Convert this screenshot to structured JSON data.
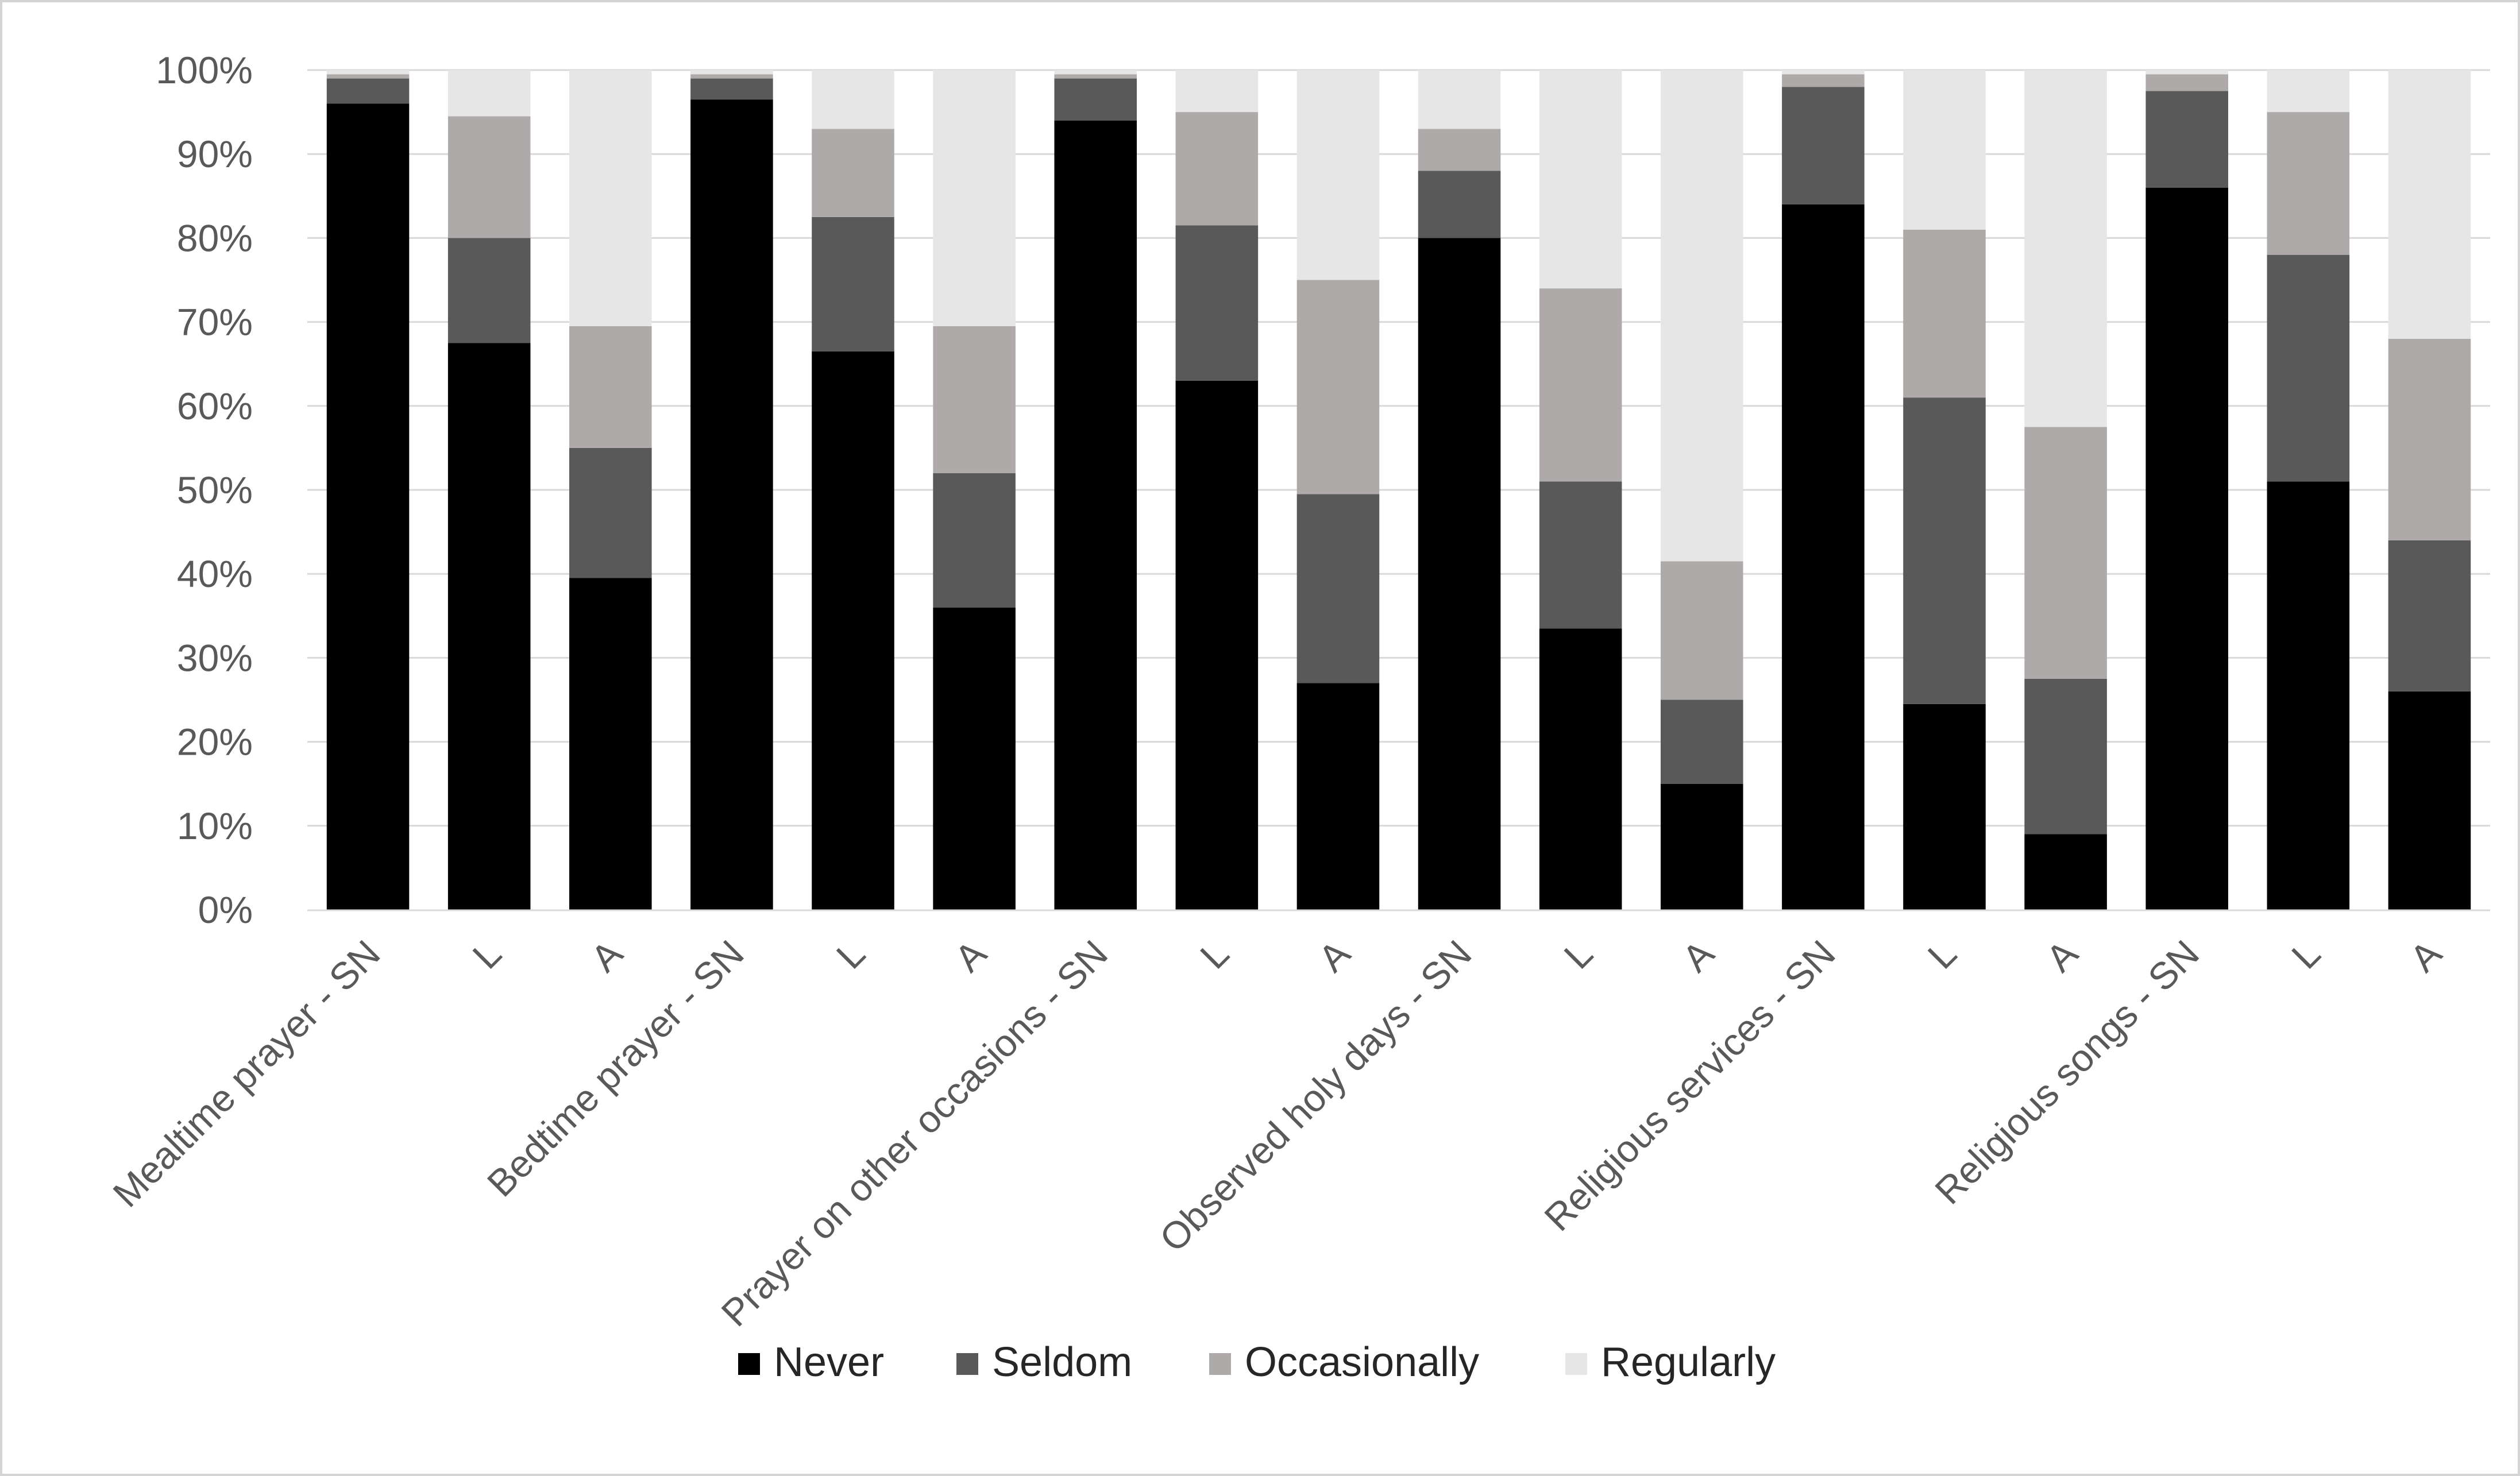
{
  "chart_data": {
    "type": "bar",
    "stacked": true,
    "percent_stacked": true,
    "categories": [
      "Mealtime prayer - SN",
      "L",
      "A",
      "Bedtime prayer - SN",
      "L",
      "A",
      "Prayer on other occasions - SN",
      "L",
      "A",
      "Observed holy days - SN",
      "L",
      "A",
      "Religious services - SN",
      "L",
      "A",
      "Religious songs - SN",
      "L",
      "A"
    ],
    "series": [
      {
        "name": "Never",
        "color": "#000000",
        "values": [
          96,
          67.5,
          39.5,
          96.5,
          66.5,
          36,
          94,
          63,
          27,
          80,
          33.5,
          15,
          84,
          24.5,
          9,
          86,
          51,
          26
        ]
      },
      {
        "name": "Seldom",
        "color": "#595959",
        "values": [
          3,
          12.5,
          15.5,
          2.5,
          16,
          16,
          5,
          18.5,
          22.5,
          8,
          17.5,
          10,
          14,
          36.5,
          18.5,
          11.5,
          27,
          18
        ]
      },
      {
        "name": "Occasionally",
        "color": "#aeaaaa",
        "values": [
          0.5,
          14.5,
          14.5,
          0.5,
          10.5,
          17.5,
          0.5,
          13.5,
          25.5,
          5,
          23,
          16.5,
          1.5,
          20,
          30,
          2,
          17,
          24
        ]
      },
      {
        "name": "Regularly",
        "color": "#e7e6e6",
        "values": [
          0.5,
          5.5,
          30.5,
          0.5,
          7,
          30.5,
          0.5,
          5,
          25,
          7,
          26,
          58.5,
          0.5,
          19,
          42.5,
          0.5,
          5,
          32
        ]
      }
    ],
    "y_ticks": [
      "0%",
      "10%",
      "20%",
      "30%",
      "40%",
      "50%",
      "60%",
      "70%",
      "80%",
      "90%",
      "100%"
    ],
    "ylim": [
      0,
      100
    ],
    "title": "",
    "xlabel": "",
    "ylabel": "",
    "grid": true,
    "legend_position": "bottom"
  }
}
